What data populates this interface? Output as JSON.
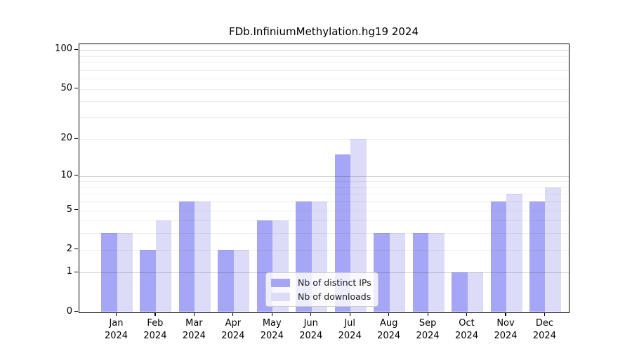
{
  "chart_data": {
    "type": "bar",
    "title": "FDb.InfiniumMethylation.hg19 2024",
    "categories": [
      "Jan",
      "Feb",
      "Mar",
      "Apr",
      "May",
      "Jun",
      "Jul",
      "Aug",
      "Sep",
      "Oct",
      "Nov",
      "Dec"
    ],
    "category_year_line": "2024",
    "series": [
      {
        "name": "Nb of distinct IPs",
        "color": "#a6a6f6",
        "values": [
          3,
          2,
          6,
          2,
          4,
          6,
          15,
          3,
          3,
          1,
          6,
          6
        ]
      },
      {
        "name": "Nb of downloads",
        "color": "#dcdcf9",
        "values": [
          3,
          4,
          6,
          2,
          4,
          6,
          20,
          3,
          3,
          1,
          7,
          8
        ]
      }
    ],
    "xlabel": "",
    "ylabel": "",
    "yscale": "log1p",
    "ylim": [
      0,
      112
    ],
    "yticks": [
      0,
      1,
      2,
      5,
      10,
      20,
      50,
      100
    ],
    "ytick_labels": [
      "0",
      "1",
      "2",
      "5",
      "10",
      "20",
      "50",
      "100"
    ],
    "major_gridlines": [
      1,
      10,
      100
    ],
    "minor_gridlines": [
      2,
      3,
      4,
      5,
      6,
      7,
      8,
      9,
      20,
      30,
      40,
      50,
      60,
      70,
      80,
      90
    ],
    "grid": "on",
    "legend_position": "inside-bottom-center"
  },
  "colors": {
    "background": "#ffffff",
    "axis": "#000000",
    "text": "#1a1a1a",
    "major_grid": "rgba(0,0,0,0.17)",
    "minor_grid": "rgba(0,0,0,0.065)",
    "legend_background": "rgba(255,255,255,0.8)",
    "legend_border": "#cccccc"
  }
}
